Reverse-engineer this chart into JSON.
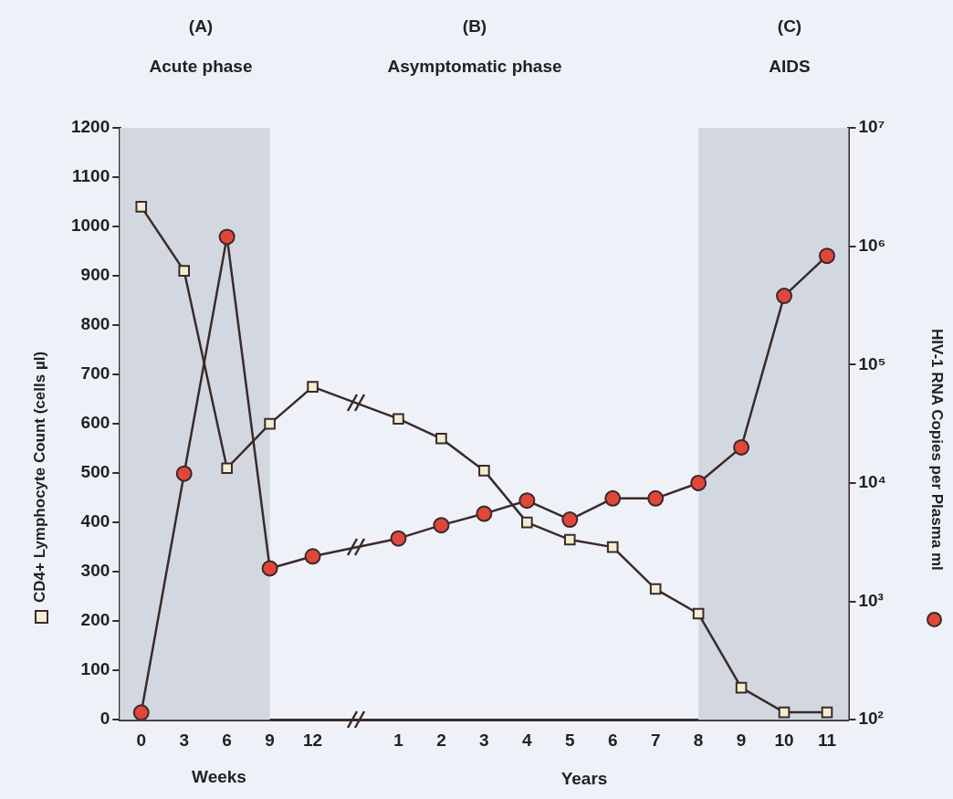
{
  "chart_data": {
    "type": "line",
    "categories": [
      "0",
      "3",
      "6",
      "9",
      "12",
      null,
      "1",
      "2",
      "3",
      "4",
      "5",
      "6",
      "7",
      "8",
      "9",
      "10",
      "11"
    ],
    "series": [
      {
        "color": "#f3edd2",
        "marker": "square",
        "values": [
          1040,
          910,
          510,
          600,
          675,
          null,
          610,
          570,
          505,
          400,
          365,
          350,
          265,
          215,
          65,
          15,
          15
        ]
      },
      {
        "color": "#e0473a",
        "marker": "circle",
        "axis": "y2",
        "values": [
          115,
          12000,
          1200000,
          1900,
          2400,
          null,
          3400,
          4400,
          5500,
          7100,
          4900,
          7400,
          7400,
          10000,
          20000,
          380000,
          830000
        ]
      }
    ],
    "xlabel": "Weeks",
    "ylabel": "CD4+ Lymphocyte Count (cells µl)",
    "y2label": "HIV-1 RNA Copies per Plasma ml",
    "ylim": [
      0,
      1200
    ],
    "yticks": [
      0,
      100,
      200,
      300,
      400,
      500,
      600,
      700,
      800,
      900,
      1000,
      1100,
      1200
    ],
    "y2lim": [
      100,
      10000000
    ],
    "y2ticks": [
      {
        "value": 100,
        "label": "10²"
      },
      {
        "value": 1000,
        "label": "10³"
      },
      {
        "value": 10000,
        "label": "10⁴"
      },
      {
        "value": 100000,
        "label": "10⁵"
      },
      {
        "value": 1000000,
        "label": "10⁶"
      },
      {
        "value": 10000000,
        "label": "10⁷"
      }
    ],
    "log": "y2",
    "bands": [
      {
        "axis": "x",
        "from": "0",
        "to": "9",
        "color": "#d3d8e0"
      },
      {
        "axis": "x",
        "from": "8",
        "to": "11",
        "color": "#d3d8e0"
      }
    ],
    "annotations": [
      "(A)",
      "Acute phase",
      "(B)",
      "Asymptomatic phase",
      "(C)",
      "AIDS",
      "Years"
    ],
    "grid": false,
    "legend": false,
    "line_style": "solid"
  }
}
